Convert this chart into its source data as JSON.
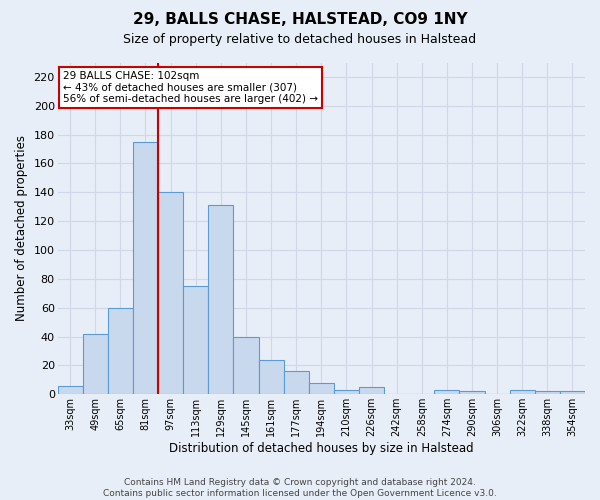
{
  "title": "29, BALLS CHASE, HALSTEAD, CO9 1NY",
  "subtitle": "Size of property relative to detached houses in Halstead",
  "xlabel": "Distribution of detached houses by size in Halstead",
  "ylabel": "Number of detached properties",
  "bar_labels": [
    "33sqm",
    "49sqm",
    "65sqm",
    "81sqm",
    "97sqm",
    "113sqm",
    "129sqm",
    "145sqm",
    "161sqm",
    "177sqm",
    "194sqm",
    "210sqm",
    "226sqm",
    "242sqm",
    "258sqm",
    "274sqm",
    "290sqm",
    "306sqm",
    "322sqm",
    "338sqm",
    "354sqm"
  ],
  "bar_values": [
    6,
    42,
    60,
    175,
    140,
    75,
    131,
    40,
    24,
    16,
    8,
    3,
    5,
    0,
    0,
    3,
    2,
    0,
    3,
    2,
    2
  ],
  "bar_color": "#c9d9ed",
  "bar_edgecolor": "#5b9bd5",
  "vline_x": 3.5,
  "vline_color": "#cc0000",
  "annotation_text": "29 BALLS CHASE: 102sqm\n← 43% of detached houses are smaller (307)\n56% of semi-detached houses are larger (402) →",
  "annotation_box_facecolor": "#ffffff",
  "annotation_box_edgecolor": "#cc0000",
  "ylim": [
    0,
    230
  ],
  "yticks": [
    0,
    20,
    40,
    60,
    80,
    100,
    120,
    140,
    160,
    180,
    200,
    220
  ],
  "footnote": "Contains HM Land Registry data © Crown copyright and database right 2024.\nContains public sector information licensed under the Open Government Licence v3.0.",
  "bg_color": "#e8eef7",
  "grid_color": "#d0d8e8"
}
